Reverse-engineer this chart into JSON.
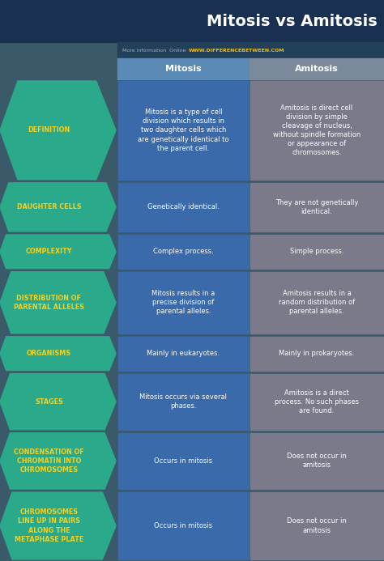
{
  "title": "Mitosis vs Amitosis",
  "subtitle_gray": "More Information  Online",
  "subtitle_url": "WWW.DIFFERENCEBETWEEN.COM",
  "col1_header": "Mitosis",
  "col2_header": "Amitosis",
  "bg_color": "#3a5a6a",
  "header_bg": "#1a3050",
  "teal_color": "#2aaa8a",
  "blue_cell_color": "#3a6aaa",
  "gray_cell_color": "#7a7a8a",
  "label_text_color": "#f5d020",
  "cell_text_color": "#ffffff",
  "header_text_color": "#ffffff",
  "title_color": "#ffffff",
  "url_color": "#f5c000",
  "subtitle_bar_color": "#22405a",
  "col1_header_color": "#5a8ab5",
  "col2_header_color": "#7a8a9a",
  "rows": [
    {
      "label": "DEFINITION",
      "mitosis": "Mitosis is a type of cell\ndivision which results in\ntwo daughter cells which\nare genetically identical to\nthe parent cell.",
      "amitosis": "Amitosis is direct cell\ndivision by simple\ncleavage of nucleus,\nwithout spindle formation\nor appearance of\nchromosomes."
    },
    {
      "label": "DAUGHTER CELLS",
      "mitosis": "Genetically identical.",
      "amitosis": "They are not genetically\nidentical."
    },
    {
      "label": "COMPLEXITY",
      "mitosis": "Complex process.",
      "amitosis": "Simple process."
    },
    {
      "label": "DISTRIBUTION OF\nPARENTAL ALLELES",
      "mitosis": "Mitosis results in a\nprecise division of\nparental alleles.",
      "amitosis": "Amitosis results in a\nrandom distribution of\nparental alleles."
    },
    {
      "label": "ORGANISMS",
      "mitosis": "Mainly in eukaryotes.",
      "amitosis": "Mainly in prokaryotes."
    },
    {
      "label": "STAGES",
      "mitosis": "Mitosis occurs via several\nphases.",
      "amitosis": "Amitosis is a direct\nprocess. No such phases\nare found."
    },
    {
      "label": "CONDENSATION OF\nCHROMATIN INTO\nCHROMOSOMES",
      "mitosis": "Occurs in mitosis",
      "amitosis": "Does not occur in\namitosis"
    },
    {
      "label": "CHROMOSOMES\nLINE UP IN PAIRS\nALONG THE\nMETAPHASE PLATE",
      "mitosis": "Occurs in mitosis",
      "amitosis": "Does not occur in\namitosis"
    }
  ],
  "row_heights_rel": [
    5.5,
    2.8,
    2.0,
    3.5,
    2.0,
    3.2,
    3.2,
    3.8
  ]
}
